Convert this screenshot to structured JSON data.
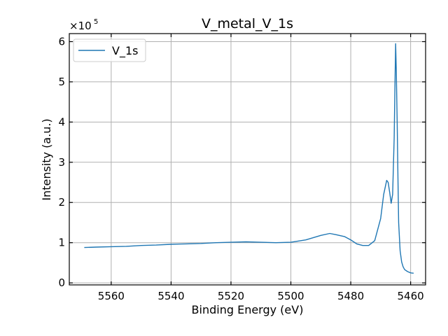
{
  "chart_data": {
    "type": "line",
    "title": "V_metal_V_1s",
    "xlabel": "Binding Energy (eV)",
    "ylabel": "Intensity (a.u.)",
    "x_reversed": true,
    "xlim": [
      5574,
      5455
    ],
    "ylim": [
      -0.05,
      6.2
    ],
    "y_multiplier_label": "×10",
    "y_multiplier_exp": "5",
    "x_ticks": [
      5560,
      5540,
      5520,
      5500,
      5480,
      5460
    ],
    "y_ticks": [
      0,
      1,
      2,
      3,
      4,
      5,
      6
    ],
    "grid": true,
    "legend_placement": "top-left",
    "series": [
      {
        "name": "V_1s",
        "color": "#1f77b4",
        "x": [
          5569,
          5565,
          5560,
          5555,
          5550,
          5545,
          5540,
          5535,
          5530,
          5525,
          5520,
          5515,
          5510,
          5505,
          5500,
          5495,
          5490,
          5487,
          5485,
          5482,
          5480,
          5478,
          5476,
          5474,
          5472,
          5470,
          5469,
          5468,
          5467.5,
          5467,
          5466.5,
          5466,
          5465.5,
          5465.2,
          5465,
          5464.8,
          5464.5,
          5464.2,
          5464,
          5463.5,
          5463,
          5462.5,
          5462,
          5461,
          5460,
          5459
        ],
        "y": [
          0.88,
          0.89,
          0.9,
          0.91,
          0.93,
          0.94,
          0.96,
          0.97,
          0.98,
          1.0,
          1.01,
          1.02,
          1.01,
          1.0,
          1.01,
          1.07,
          1.18,
          1.23,
          1.2,
          1.15,
          1.07,
          0.97,
          0.93,
          0.93,
          1.05,
          1.6,
          2.2,
          2.55,
          2.5,
          2.25,
          1.98,
          2.2,
          3.6,
          5.1,
          5.95,
          5.3,
          4.0,
          2.5,
          1.5,
          0.8,
          0.52,
          0.4,
          0.33,
          0.28,
          0.25,
          0.24
        ]
      }
    ]
  }
}
